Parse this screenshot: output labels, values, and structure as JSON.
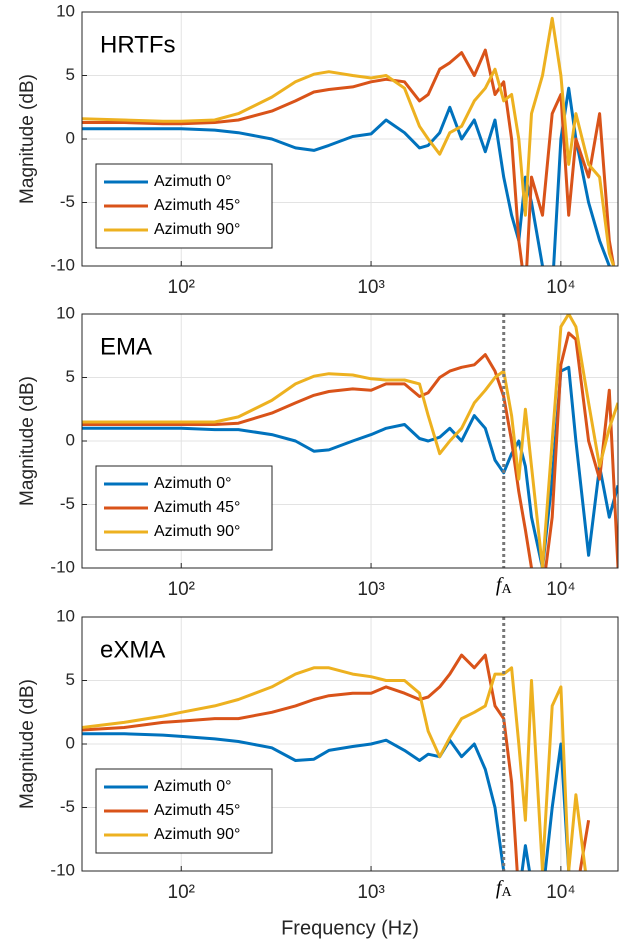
{
  "chart_data": [
    {
      "type": "line",
      "title": "HRTFs",
      "ylabel": "Magnitude (dB)",
      "x": [
        30,
        50,
        80,
        100,
        150,
        200,
        300,
        400,
        500,
        600,
        800,
        1000,
        1200,
        1500,
        1800,
        2000,
        2300,
        2600,
        3000,
        3500,
        4000,
        4500,
        5000,
        5500,
        6000,
        6500,
        7000,
        8000,
        9000,
        10000,
        11000,
        12000,
        14000,
        16000,
        18000,
        20000
      ],
      "series": [
        {
          "name": "Azimuth 0°",
          "color": "#0072BD",
          "values": [
            0.8,
            0.8,
            0.8,
            0.8,
            0.7,
            0.5,
            0,
            -0.7,
            -0.9,
            -0.5,
            0.2,
            0.4,
            1.5,
            0.5,
            -0.7,
            -0.5,
            0.5,
            2.5,
            0,
            1.5,
            -1,
            1.5,
            -3,
            -6,
            -8,
            -3,
            -5,
            -10,
            -12,
            0,
            4,
            0,
            -5,
            -8,
            -10,
            -12
          ]
        },
        {
          "name": "Azimuth 45°",
          "color": "#D95319",
          "values": [
            1.3,
            1.3,
            1.2,
            1.2,
            1.3,
            1.5,
            2.2,
            3,
            3.7,
            3.9,
            4.1,
            4.5,
            4.7,
            4.5,
            3,
            3.5,
            5.5,
            6,
            6.8,
            5,
            7,
            3.5,
            4.5,
            0,
            -8,
            -12,
            -3,
            -6,
            2,
            3.5,
            -6,
            0,
            -3,
            2,
            -8,
            -12
          ]
        },
        {
          "name": "Azimuth 90°",
          "color": "#EDB120",
          "values": [
            1.6,
            1.5,
            1.4,
            1.4,
            1.5,
            2,
            3.3,
            4.5,
            5.1,
            5.3,
            5,
            4.8,
            5,
            4,
            1,
            0,
            -1.2,
            0.5,
            1,
            3,
            4,
            5.5,
            3,
            3.5,
            0,
            -6,
            2,
            5,
            9.5,
            5,
            -2,
            2,
            -2,
            -3,
            -9,
            -11
          ]
        }
      ],
      "xlim": [
        30,
        20000
      ],
      "xticks": [
        {
          "value": 100,
          "label": "10²"
        },
        {
          "value": 1000,
          "label": "10³"
        },
        {
          "value": 10000,
          "label": "10⁴"
        }
      ],
      "ylim": [
        -10,
        10
      ],
      "yticks": [
        -10,
        -5,
        0,
        5,
        10
      ],
      "xscale": "log",
      "grid": true,
      "legend": "lower left"
    },
    {
      "type": "line",
      "title": "EMA",
      "ylabel": "Magnitude (dB)",
      "x": [
        30,
        50,
        80,
        100,
        150,
        200,
        300,
        400,
        500,
        600,
        800,
        1000,
        1200,
        1500,
        1800,
        2000,
        2300,
        2600,
        3000,
        3500,
        4000,
        4500,
        5000,
        5500,
        6000,
        6500,
        7000,
        8000,
        9000,
        10000,
        11000,
        12000,
        14000,
        16000,
        18000,
        20000
      ],
      "series": [
        {
          "name": "Azimuth 0°",
          "color": "#0072BD",
          "values": [
            1,
            1,
            1,
            1,
            0.9,
            0.9,
            0.5,
            0,
            -0.8,
            -0.7,
            0,
            0.5,
            1,
            1.3,
            0.2,
            0,
            0.3,
            1,
            0,
            2,
            1,
            -1.5,
            -2.5,
            -1,
            0,
            -2,
            -6,
            -10,
            -3,
            5.5,
            5.8,
            0,
            -9,
            -2,
            -6,
            -3.5
          ]
        },
        {
          "name": "Azimuth 45°",
          "color": "#D95319",
          "values": [
            1.3,
            1.3,
            1.3,
            1.3,
            1.3,
            1.4,
            2.2,
            3,
            3.6,
            3.9,
            4.1,
            4,
            4.5,
            4.5,
            3.5,
            3.8,
            5,
            5.5,
            5.8,
            6,
            6.8,
            5.5,
            3.5,
            0,
            -4,
            -7,
            -10,
            -12,
            -6,
            6,
            8.5,
            8,
            0,
            -3,
            4,
            -10
          ]
        },
        {
          "name": "Azimuth 90°",
          "color": "#EDB120",
          "values": [
            1.5,
            1.5,
            1.5,
            1.5,
            1.5,
            1.9,
            3.2,
            4.5,
            5.1,
            5.3,
            5.2,
            4.9,
            4.8,
            4.8,
            4.5,
            2,
            -1,
            0,
            1,
            3,
            4,
            5,
            5.5,
            2,
            -3,
            2.5,
            -2,
            -10,
            0,
            9,
            10,
            9,
            3,
            -2,
            1,
            3
          ]
        }
      ],
      "xlim": [
        30,
        20000
      ],
      "xticks": [
        {
          "value": 100,
          "label": "10²"
        },
        {
          "value": 1000,
          "label": "10³"
        },
        {
          "value": 10000,
          "label": "10⁴"
        }
      ],
      "ylim": [
        -10,
        10
      ],
      "yticks": [
        -10,
        -5,
        0,
        5,
        10
      ],
      "xscale": "log",
      "grid": true,
      "legend": "lower left",
      "annotation": {
        "text": "f",
        "subscript": "A",
        "x": 5000
      }
    },
    {
      "type": "line",
      "title": "eXMA",
      "ylabel": "Magnitude (dB)",
      "xlabel": "Frequency (Hz)",
      "x": [
        30,
        50,
        80,
        100,
        150,
        200,
        300,
        400,
        500,
        600,
        800,
        1000,
        1200,
        1500,
        1800,
        2000,
        2300,
        2600,
        3000,
        3500,
        4000,
        4500,
        5000,
        5500,
        6000,
        6500,
        7000,
        8000,
        9000,
        10000,
        11000,
        12000,
        14000,
        16000,
        18000,
        20000
      ],
      "series": [
        {
          "name": "Azimuth 0°",
          "color": "#0072BD",
          "values": [
            0.8,
            0.8,
            0.7,
            0.6,
            0.4,
            0.2,
            -0.3,
            -1.3,
            -1.2,
            -0.5,
            -0.2,
            0,
            0.3,
            -0.5,
            -1.3,
            -0.8,
            -1,
            0.3,
            -1,
            0,
            -2,
            -5,
            -10,
            -12,
            -12,
            -8,
            -11,
            -12,
            -5,
            0,
            -10,
            null,
            null,
            null,
            null,
            null
          ]
        },
        {
          "name": "Azimuth 45°",
          "color": "#D95319",
          "values": [
            1.1,
            1.3,
            1.7,
            1.8,
            2,
            2,
            2.5,
            3,
            3.5,
            3.8,
            4,
            4,
            4.5,
            4,
            3.5,
            3.7,
            4.5,
            5.5,
            7,
            6,
            7,
            3,
            2,
            -3,
            -12,
            -12,
            -12,
            -12,
            -12,
            -12,
            -10,
            -12,
            -6,
            null,
            null,
            null
          ]
        },
        {
          "name": "Azimuth 90°",
          "color": "#EDB120",
          "values": [
            1.3,
            1.7,
            2.2,
            2.5,
            3,
            3.5,
            4.5,
            5.5,
            6,
            6,
            5.5,
            5.3,
            5,
            5,
            4,
            1,
            -1,
            0.5,
            2,
            2.5,
            3,
            5.5,
            5.5,
            6,
            0,
            -6,
            5,
            -10,
            3,
            4.5,
            -10,
            -4,
            -12,
            null,
            null,
            null
          ]
        }
      ],
      "xlim": [
        30,
        20000
      ],
      "xticks": [
        {
          "value": 100,
          "label": "10²"
        },
        {
          "value": 1000,
          "label": "10³"
        },
        {
          "value": 10000,
          "label": "10⁴"
        }
      ],
      "ylim": [
        -10,
        10
      ],
      "yticks": [
        -10,
        -5,
        0,
        5,
        10
      ],
      "xscale": "log",
      "grid": true,
      "legend": "lower left",
      "annotation": {
        "text": "f",
        "subscript": "A",
        "x": 5000
      }
    }
  ]
}
